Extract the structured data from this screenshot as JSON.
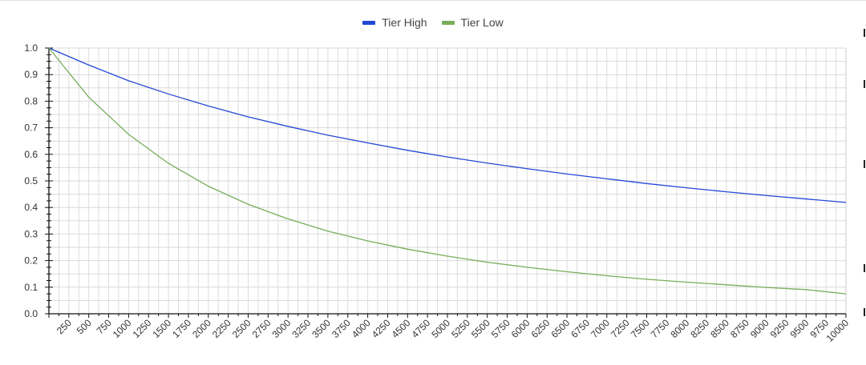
{
  "chart_data": {
    "type": "line",
    "title": "",
    "xlabel": "",
    "ylabel": "",
    "xlim": [
      0,
      10000
    ],
    "ylim": [
      0,
      1
    ],
    "x_ticks": [
      250,
      500,
      750,
      1000,
      1250,
      1500,
      1750,
      2000,
      2250,
      2500,
      2750,
      3000,
      3250,
      3500,
      3750,
      4000,
      4250,
      4500,
      4750,
      5000,
      5250,
      5500,
      5750,
      6000,
      6250,
      6500,
      6750,
      7000,
      7250,
      7500,
      7750,
      8000,
      8250,
      8500,
      8750,
      9000,
      9250,
      9500,
      9750,
      10000
    ],
    "y_ticks": [
      "0.0",
      "0.1",
      "0.2",
      "0.3",
      "0.4",
      "0.5",
      "0.6",
      "0.7",
      "0.8",
      "0.9",
      "1.0"
    ],
    "grid": true,
    "legend_position": "top-center",
    "x": [
      0,
      500,
      1000,
      1500,
      2000,
      2500,
      3000,
      3500,
      4000,
      4500,
      5000,
      5500,
      6000,
      6500,
      7000,
      7500,
      8000,
      8500,
      9000,
      9500,
      10000
    ],
    "series": [
      {
        "name": "Tier High",
        "color": "#2347d6",
        "values": [
          1.0,
          0.936,
          0.877,
          0.827,
          0.782,
          0.741,
          0.705,
          0.672,
          0.643,
          0.615,
          0.59,
          0.567,
          0.546,
          0.526,
          0.508,
          0.49,
          0.474,
          0.459,
          0.445,
          0.432,
          0.419
        ]
      },
      {
        "name": "Tier Low",
        "color": "#77ad5b",
        "values": [
          1.0,
          0.815,
          0.675,
          0.566,
          0.48,
          0.412,
          0.357,
          0.311,
          0.274,
          0.243,
          0.217,
          0.194,
          0.175,
          0.158,
          0.143,
          0.13,
          0.119,
          0.109,
          0.099,
          0.091,
          0.075
        ]
      }
    ]
  }
}
